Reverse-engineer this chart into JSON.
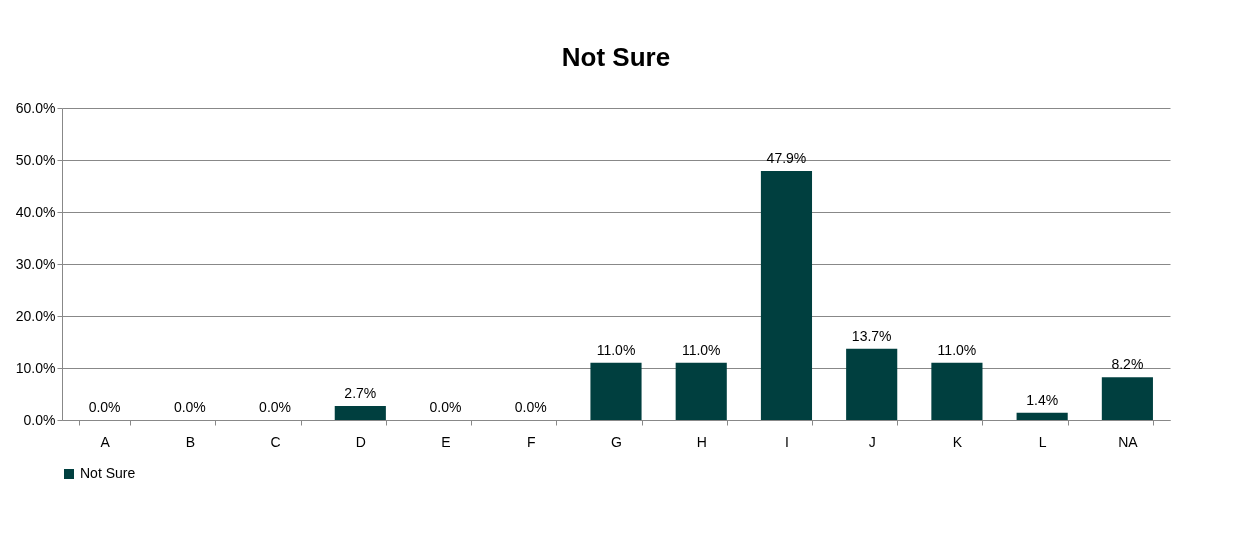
{
  "chart_data": {
    "type": "bar",
    "title": "Not Sure",
    "categories": [
      "A",
      "B",
      "C",
      "D",
      "E",
      "F",
      "G",
      "H",
      "I",
      "J",
      "K",
      "L",
      "NA"
    ],
    "series": [
      {
        "name": "Not Sure",
        "color": "#003f3f",
        "values": [
          0,
          0,
          0,
          2.7,
          0,
          0,
          11.0,
          11.0,
          47.9,
          13.7,
          11.0,
          1.4,
          8.2
        ],
        "value_labels": [
          "0.0%",
          "0.0%",
          "0.0%",
          "2.7%",
          "0.0%",
          "0.0%",
          "11.0%",
          "11.0%",
          "47.9%",
          "13.7%",
          "11.0%",
          "1.4%",
          "8.2%"
        ]
      }
    ],
    "ylim": [
      0,
      60
    ],
    "yticks": [
      {
        "value": 0,
        "label": "0.0%"
      },
      {
        "value": 10,
        "label": "10.0%"
      },
      {
        "value": 20,
        "label": "20.0%"
      },
      {
        "value": 30,
        "label": "30.0%"
      },
      {
        "value": 40,
        "label": "40.0%"
      },
      {
        "value": 50,
        "label": "50.0%"
      },
      {
        "value": 60,
        "label": "60.0%"
      }
    ],
    "grid": "y",
    "legend": "bottom"
  }
}
